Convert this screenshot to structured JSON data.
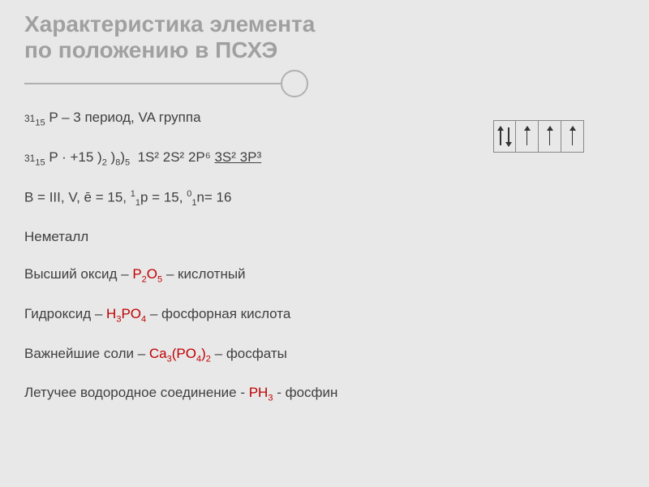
{
  "header": {
    "line1": "Характеристика элемента",
    "line2": "по положению в ПСХЭ"
  },
  "rows": {
    "period": {
      "prefix": "³¹₁₅ P – 3 период, VA группа"
    },
    "config": {
      "p1": "³¹₁₅ P · +15 )",
      "s2": "₂",
      "p2": " )",
      "s8": "₈",
      "p3": ")",
      "s5": "₅",
      "p4": "  1S² 2S² 2P⁶ ",
      "u": "3S² 3P³"
    },
    "valence": "B = III, V, ē = 15, ¹₁p = 15, ⁰₁n= 16",
    "nonmetal": "Неметалл",
    "oxide": {
      "label": "Высший оксид – ",
      "formula": "P₂O₅",
      "tail": " – кислотный"
    },
    "hydroxide": {
      "label": "Гидроксид – ",
      "formula": "H₃PO₄",
      "tail": " – фосфорная кислота"
    },
    "salts": {
      "label": "Важнейшие соли – ",
      "formula": "Ca₃(PO₄)₂",
      "tail": " – фосфаты"
    },
    "volatile": {
      "label": "Летучее водородное соединение  - ",
      "formula": "PH₃",
      "tail": " - фосфин"
    }
  },
  "orbitals": [
    {
      "arrows": [
        "up",
        "down"
      ]
    },
    {
      "arrows": [
        "up"
      ]
    },
    {
      "arrows": [
        "up"
      ]
    },
    {
      "arrows": [
        "up"
      ]
    }
  ],
  "colors": {
    "bg": "#e8e8e8",
    "title": "#a0a0a0",
    "text": "#404040",
    "accent": "#c00000",
    "border": "#888888"
  }
}
